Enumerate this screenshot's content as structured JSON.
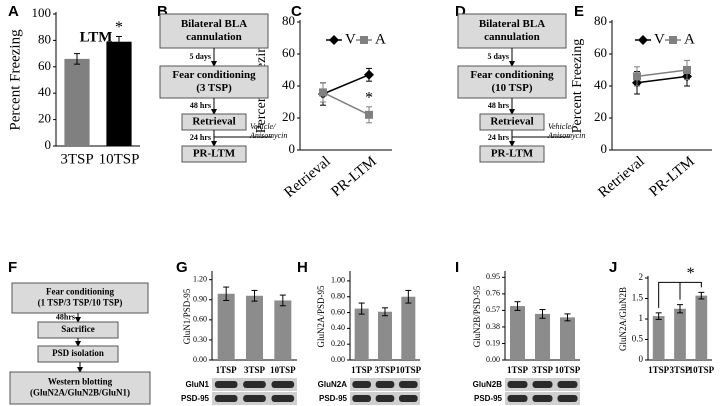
{
  "chart_data": [
    {
      "panel": "A",
      "type": "bar",
      "title": "LTM",
      "y_label": "Percent Freezing",
      "categories": [
        "3TSP",
        "10TSP"
      ],
      "values": [
        66,
        79
      ],
      "errors": [
        4,
        4
      ],
      "colors": [
        "#808080",
        "#000000"
      ],
      "ylim": [
        0,
        100
      ],
      "yticks": [
        0,
        20,
        40,
        60,
        80,
        100
      ],
      "annotation": "*"
    },
    {
      "panel": "C",
      "type": "line",
      "y_label": "Percent Freezing",
      "categories": [
        "Retrieval",
        "PR-LTM"
      ],
      "series": [
        {
          "name": "V",
          "color": "#000000",
          "marker": "diamond",
          "values": [
            35,
            47
          ],
          "errors": [
            7,
            4
          ]
        },
        {
          "name": "A",
          "color": "#808080",
          "marker": "square",
          "values": [
            36,
            22
          ],
          "errors": [
            6,
            5
          ]
        }
      ],
      "ylim": [
        0,
        80
      ],
      "yticks": [
        0,
        20,
        40,
        60,
        80
      ],
      "annotation": "*"
    },
    {
      "panel": "E",
      "type": "line",
      "y_label": "Percent Freezing",
      "categories": [
        "Retrieval",
        "PR-LTM"
      ],
      "series": [
        {
          "name": "V",
          "color": "#000000",
          "marker": "diamond",
          "values": [
            42,
            46
          ],
          "errors": [
            7,
            6
          ]
        },
        {
          "name": "A",
          "color": "#808080",
          "marker": "square",
          "values": [
            46,
            50
          ],
          "errors": [
            6,
            6
          ]
        }
      ],
      "ylim": [
        0,
        80
      ],
      "yticks": [
        0,
        20,
        40,
        60,
        80
      ]
    },
    {
      "panel": "G",
      "type": "bar",
      "y_label": "GluN1/PSD-95",
      "categories": [
        "1TSP",
        "3TSP",
        "10TSP"
      ],
      "values": [
        0.99,
        0.96,
        0.89
      ],
      "errors": [
        0.1,
        0.08,
        0.08
      ],
      "color": "#8c8c8c",
      "ylim": [
        0,
        1.3
      ],
      "yticks": [
        {
          "value": 0,
          "label": "0.00"
        },
        {
          "value": 0.3,
          "label": "0.30"
        },
        {
          "value": 0.6,
          "label": "0.60"
        },
        {
          "value": 0.9,
          "label": "0.90"
        },
        {
          "value": 1.2,
          "label": "1.20"
        }
      ],
      "blots": [
        "GluN1",
        "PSD-95"
      ]
    },
    {
      "panel": "H",
      "type": "bar",
      "y_label": "GluN2A/PSD-95",
      "categories": [
        "1TSP",
        "3TSP",
        "10TSP"
      ],
      "values": [
        0.65,
        0.61,
        0.8
      ],
      "errors": [
        0.07,
        0.05,
        0.08
      ],
      "color": "#8c8c8c",
      "ylim": [
        0,
        1.1
      ],
      "yticks": [
        {
          "value": 0,
          "label": "0.00"
        },
        {
          "value": 0.2,
          "label": "0.20"
        },
        {
          "value": 0.4,
          "label": "0.40"
        },
        {
          "value": 0.6,
          "label": "0.60"
        },
        {
          "value": 0.8,
          "label": "0.80"
        },
        {
          "value": 1,
          "label": "1.00"
        }
      ],
      "blots": [
        "GluN2A",
        "PSD-95"
      ]
    },
    {
      "panel": "I",
      "type": "bar",
      "y_label": "GluN2B/PSD-95",
      "categories": [
        "1TSP",
        "3TSP",
        "10TSP"
      ],
      "values": [
        0.62,
        0.53,
        0.49
      ],
      "errors": [
        0.05,
        0.05,
        0.04
      ],
      "color": "#8c8c8c",
      "ylim": [
        0,
        1.0
      ],
      "yticks": [
        {
          "value": 0,
          "label": "0.00"
        },
        0.19,
        0.38,
        0.57,
        0.76,
        0.95
      ],
      "blots": [
        "GluN2B",
        "PSD-95"
      ]
    },
    {
      "panel": "J",
      "type": "bar",
      "y_label": "GluN2A/GluN2B",
      "categories": [
        "1TSP",
        "3TSP",
        "10TSP"
      ],
      "values": [
        1.07,
        1.25,
        1.57
      ],
      "errors": [
        0.08,
        0.1,
        0.08
      ],
      "color": "#8c8c8c",
      "ylim": [
        0,
        2
      ],
      "yticks": [
        0,
        0.5,
        1,
        1.5,
        2
      ],
      "annotation": "*"
    }
  ],
  "flowcharts": [
    {
      "panel": "B",
      "nodes": [
        [
          "Bilateral BLA",
          "cannulation"
        ],
        [
          "Fear conditioning",
          "(3 TSP)"
        ],
        [
          "Retrieval"
        ],
        [
          "PR-LTM"
        ]
      ],
      "edge_labels": [
        "5 days",
        "48 hrs",
        "24 hrs"
      ],
      "side_note": [
        "Vehicle/",
        "Anisomycin"
      ]
    },
    {
      "panel": "D",
      "nodes": [
        [
          "Bilateral BLA",
          "cannulation"
        ],
        [
          "Fear conditioning",
          "(10 TSP)"
        ],
        [
          "Retrieval"
        ],
        [
          "PR-LTM"
        ]
      ],
      "edge_labels": [
        "5 days",
        "48 hrs",
        "24 hrs"
      ],
      "side_note": [
        "Vehicle/",
        "Anisomycin"
      ]
    },
    {
      "panel": "F",
      "nodes": [
        [
          "Fear conditioning",
          "(1 TSP/3 TSP/10 TSP)"
        ],
        [
          "Sacrifice"
        ],
        [
          "PSD isolation"
        ],
        [
          "Western blotting",
          "(GluN2A/GluN2B/GluN1)"
        ]
      ],
      "edge_labels": [
        "48hrs"
      ]
    }
  ]
}
